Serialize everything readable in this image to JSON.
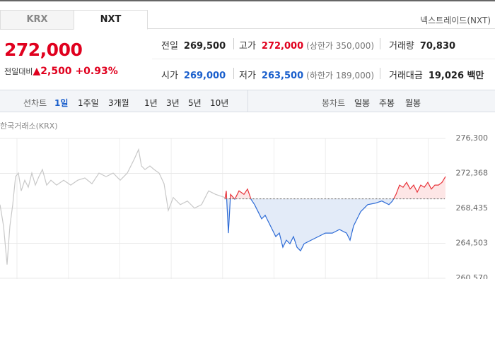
{
  "tabs": [
    {
      "label": "KRX"
    },
    {
      "label": "NXT"
    }
  ],
  "active_tab": 1,
  "exchange": "넥스트레이드(NXT)",
  "price": {
    "value": "272,000",
    "change_label": "전일대비",
    "change": "2,500",
    "change_pct": "+0.93%",
    "color": "#e0001e"
  },
  "stats": {
    "rows": [
      [
        {
          "label": "전일",
          "value": "269,500"
        },
        {
          "label": "고가",
          "value": "272,000",
          "note": "(상한가 350,000)",
          "color": "#e0001e"
        },
        {
          "label": "거래량",
          "value": "70,830"
        }
      ],
      [
        {
          "label": "시가",
          "value": "269,000",
          "color": "#1a5fcc"
        },
        {
          "label": "저가",
          "value": "263,500",
          "note": "(하한가 189,000)",
          "color": "#1a5fcc"
        },
        {
          "label": "거래대금",
          "value": "19,026 백만"
        }
      ]
    ]
  },
  "line_chart_tabs": {
    "label": "선차트",
    "options": [
      "1일",
      "1주일",
      "3개월",
      "1년",
      "3년",
      "5년",
      "10년"
    ],
    "active": 0
  },
  "candle_chart_tabs": {
    "label": "봉차트",
    "options": [
      "일봉",
      "주봉",
      "월봉"
    ]
  },
  "chart_data": {
    "type": "line",
    "source": "한국거래소(KRX)",
    "ylim": [
      260570,
      276300
    ],
    "yticks": [
      {
        "value": 260570,
        "label": "260,570"
      },
      {
        "value": 264503,
        "label": "264,503"
      },
      {
        "value": 268435,
        "label": "268,435"
      },
      {
        "value": 272368,
        "label": "272,368"
      },
      {
        "value": 276300,
        "label": "276,300"
      }
    ],
    "xlim": [
      0,
      630
    ],
    "baseline": 269500,
    "grid": true,
    "series": [
      {
        "color": "#c8c8c8",
        "x": [
          0,
          5,
          10,
          14,
          18,
          22,
          26,
          30,
          35,
          40,
          45,
          50,
          55,
          60,
          66,
          72,
          80,
          90,
          100,
          110,
          120,
          130,
          140,
          150,
          160,
          170,
          180,
          190,
          196,
          200,
          205,
          212,
          218,
          225,
          232,
          238,
          245,
          255,
          265,
          275,
          285,
          295,
          305,
          318
        ],
        "values": [
          268850,
          266450,
          262100,
          266450,
          268850,
          272000,
          272400,
          270400,
          271600,
          270800,
          272400,
          271050,
          272000,
          272800,
          271050,
          271600,
          271050,
          271600,
          271050,
          271600,
          271850,
          271200,
          272400,
          272000,
          272400,
          271600,
          272400,
          274000,
          275050,
          273200,
          272800,
          273200,
          272800,
          272400,
          271200,
          268200,
          269650,
          268850,
          269250,
          268450,
          268850,
          270400,
          270000,
          269650
        ]
      },
      {
        "color": "#2d6bd6",
        "color_above": "#e8333a",
        "fill": "#e3ebf8",
        "fill_above": "#fde6e6",
        "x": [
          318,
          320,
          323,
          326,
          332,
          338,
          345,
          350,
          355,
          360,
          365,
          370,
          375,
          380,
          385,
          390,
          395,
          400,
          405,
          410,
          415,
          420,
          425,
          430,
          440,
          450,
          460,
          470,
          480,
          490,
          495,
          500,
          505,
          510,
          515,
          520,
          530,
          540,
          550,
          555,
          560,
          565,
          570,
          575,
          580,
          585,
          590,
          595,
          600,
          605,
          610,
          615,
          620,
          625,
          630
        ],
        "values": [
          269450,
          270400,
          265650,
          270000,
          269450,
          270400,
          270000,
          270600,
          269450,
          268850,
          268050,
          267250,
          267650,
          266850,
          266050,
          265250,
          265650,
          264050,
          264850,
          264450,
          265250,
          264050,
          263650,
          264450,
          264850,
          265250,
          265650,
          265650,
          266050,
          265650,
          264850,
          266450,
          267250,
          268050,
          268450,
          268850,
          269000,
          269250,
          268850,
          269250,
          270000,
          271050,
          270800,
          271350,
          270600,
          271050,
          270250,
          271050,
          270800,
          271350,
          270600,
          271050,
          271050,
          271350,
          272000
        ]
      }
    ]
  }
}
